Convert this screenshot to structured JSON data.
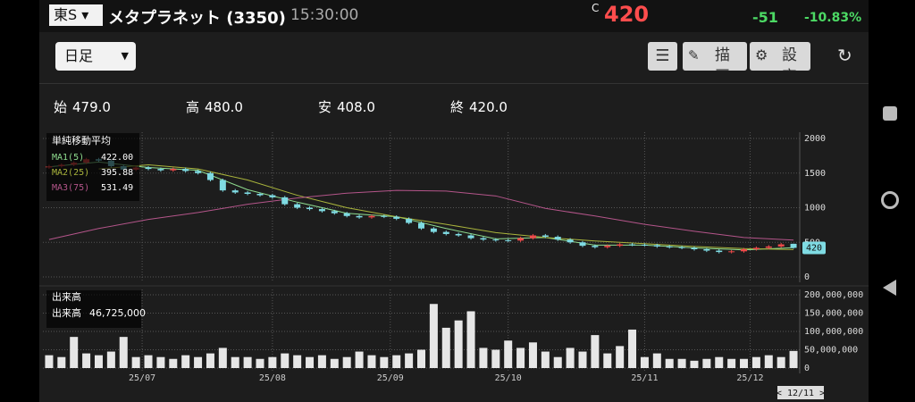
{
  "header": {
    "exchange": "東S",
    "name": "メタプラネット (3350)",
    "time": "15:30:00",
    "price_flag": "C",
    "price": 420,
    "change": -51,
    "change_pct": "-10.83%"
  },
  "toolbar": {
    "period": "日足",
    "buttons": [
      "描画",
      "設定"
    ]
  },
  "ohlc": [
    {
      "label": "始",
      "value": "479.0"
    },
    {
      "label": "高",
      "value": "480.0"
    },
    {
      "label": "安",
      "value": "408.0"
    },
    {
      "label": "終",
      "value": "420.0"
    }
  ],
  "chart_data": [
    {
      "type": "candlestick",
      "title": "単純移動平均",
      "up_color": "#f04a4a",
      "down_color": "#7fdbe3",
      "open": [
        1580,
        1600,
        1620,
        1650,
        1700,
        1680,
        1600,
        1550,
        1580,
        1560,
        1540,
        1560,
        1530,
        1500,
        1400,
        1250,
        1220,
        1200,
        1180,
        1150,
        1050,
        1000,
        980,
        950,
        920,
        880,
        860,
        880,
        870,
        840,
        780,
        700,
        650,
        620,
        600,
        560,
        540,
        530,
        525,
        560,
        600,
        580,
        540,
        500,
        450,
        430,
        450,
        470,
        465,
        460,
        440,
        430,
        420,
        400,
        380,
        360,
        370,
        400,
        420,
        440,
        479
      ],
      "high": [
        1620,
        1640,
        1670,
        1720,
        1720,
        1700,
        1620,
        1600,
        1600,
        1580,
        1580,
        1580,
        1550,
        1520,
        1420,
        1270,
        1240,
        1220,
        1200,
        1170,
        1070,
        1020,
        1000,
        970,
        940,
        900,
        900,
        900,
        890,
        860,
        800,
        720,
        670,
        640,
        620,
        580,
        560,
        550,
        580,
        620,
        620,
        600,
        560,
        520,
        470,
        470,
        490,
        490,
        485,
        480,
        460,
        450,
        440,
        420,
        400,
        390,
        420,
        440,
        460,
        491,
        480
      ],
      "low": [
        1560,
        1580,
        1600,
        1630,
        1660,
        1580,
        1530,
        1530,
        1540,
        1520,
        1520,
        1510,
        1480,
        1380,
        1230,
        1200,
        1180,
        1160,
        1130,
        1030,
        980,
        960,
        930,
        900,
        860,
        840,
        840,
        850,
        820,
        760,
        680,
        630,
        600,
        580,
        540,
        520,
        510,
        505,
        505,
        540,
        560,
        520,
        480,
        430,
        410,
        410,
        430,
        445,
        440,
        420,
        410,
        400,
        380,
        360,
        340,
        340,
        350,
        380,
        400,
        420,
        408
      ],
      "close": [
        1600,
        1620,
        1650,
        1700,
        1680,
        1600,
        1550,
        1580,
        1560,
        1540,
        1560,
        1530,
        1500,
        1400,
        1250,
        1220,
        1200,
        1180,
        1150,
        1050,
        1000,
        980,
        950,
        920,
        880,
        860,
        880,
        870,
        840,
        780,
        700,
        650,
        620,
        600,
        560,
        540,
        530,
        525,
        560,
        600,
        580,
        540,
        500,
        450,
        430,
        450,
        470,
        465,
        460,
        440,
        430,
        420,
        400,
        380,
        360,
        370,
        400,
        420,
        440,
        471,
        420
      ],
      "series": [
        {
          "name": "MA1(5)",
          "color": "#8fdc8f",
          "current": "422.00",
          "x": [
            0,
            4,
            8,
            12,
            16,
            20,
            24,
            28,
            32,
            36,
            40,
            44,
            48,
            52,
            56,
            60
          ],
          "values": [
            1590,
            1660,
            1580,
            1540,
            1260,
            1080,
            920,
            870,
            700,
            550,
            570,
            460,
            460,
            420,
            390,
            422
          ]
        },
        {
          "name": "MA2(25)",
          "color": "#a9b43c",
          "current": "395.88",
          "x": [
            4,
            8,
            12,
            16,
            20,
            24,
            28,
            32,
            36,
            40,
            44,
            48,
            52,
            56,
            60
          ],
          "values": [
            1560,
            1620,
            1560,
            1400,
            1180,
            1000,
            870,
            760,
            640,
            570,
            520,
            480,
            440,
            410,
            395.88
          ]
        },
        {
          "name": "MA3(75)",
          "color": "#b4558a",
          "current": "531.49",
          "x": [
            0,
            4,
            8,
            12,
            16,
            20,
            24,
            28,
            32,
            36,
            40,
            44,
            48,
            52,
            56,
            60
          ],
          "values": [
            540,
            700,
            830,
            930,
            1050,
            1140,
            1210,
            1250,
            1240,
            1170,
            990,
            880,
            760,
            660,
            570,
            531.49
          ]
        }
      ],
      "xlim": [
        -0.5,
        60.5
      ],
      "xticks": [
        {
          "value": 7.5,
          "label": "25/07"
        },
        {
          "value": 18,
          "label": "25/08"
        },
        {
          "value": 27.5,
          "label": "25/09"
        },
        {
          "value": 37,
          "label": "25/10"
        },
        {
          "value": 48,
          "label": "25/11"
        },
        {
          "value": 56.5,
          "label": "25/12"
        }
      ],
      "ylim": [
        0,
        2000
      ],
      "yticks": [
        0,
        500,
        1000,
        1500,
        2000
      ],
      "grid": true,
      "cursor_label": "< 12/11 >"
    },
    {
      "type": "bar",
      "title": "出来高",
      "xlim": [
        -0.5,
        60.5
      ],
      "ylim": [
        0,
        200000000
      ],
      "yticks": [
        0,
        {
          "value": 50000000,
          "label": "50,000,000"
        },
        {
          "value": 100000000,
          "label": "100,000,000"
        },
        {
          "value": 150000000,
          "label": "150,000,000"
        },
        {
          "value": 200000000,
          "label": "200,000,000"
        }
      ],
      "grid": true,
      "series": [
        {
          "name": "出来高",
          "color": "#e6e6e6",
          "current": "46,725,000",
          "values": [
            35000000,
            30000000,
            85000000,
            40000000,
            35000000,
            45000000,
            85000000,
            30000000,
            35000000,
            30000000,
            25000000,
            35000000,
            30000000,
            40000000,
            55000000,
            30000000,
            30000000,
            25000000,
            30000000,
            40000000,
            35000000,
            30000000,
            35000000,
            25000000,
            30000000,
            45000000,
            35000000,
            30000000,
            35000000,
            40000000,
            50000000,
            175000000,
            110000000,
            130000000,
            155000000,
            55000000,
            50000000,
            75000000,
            55000000,
            70000000,
            45000000,
            30000000,
            55000000,
            45000000,
            90000000,
            40000000,
            60000000,
            105000000,
            30000000,
            40000000,
            25000000,
            25000000,
            20000000,
            25000000,
            30000000,
            25000000,
            25000000,
            30000000,
            35000000,
            30000000,
            46725000
          ]
        }
      ]
    }
  ]
}
